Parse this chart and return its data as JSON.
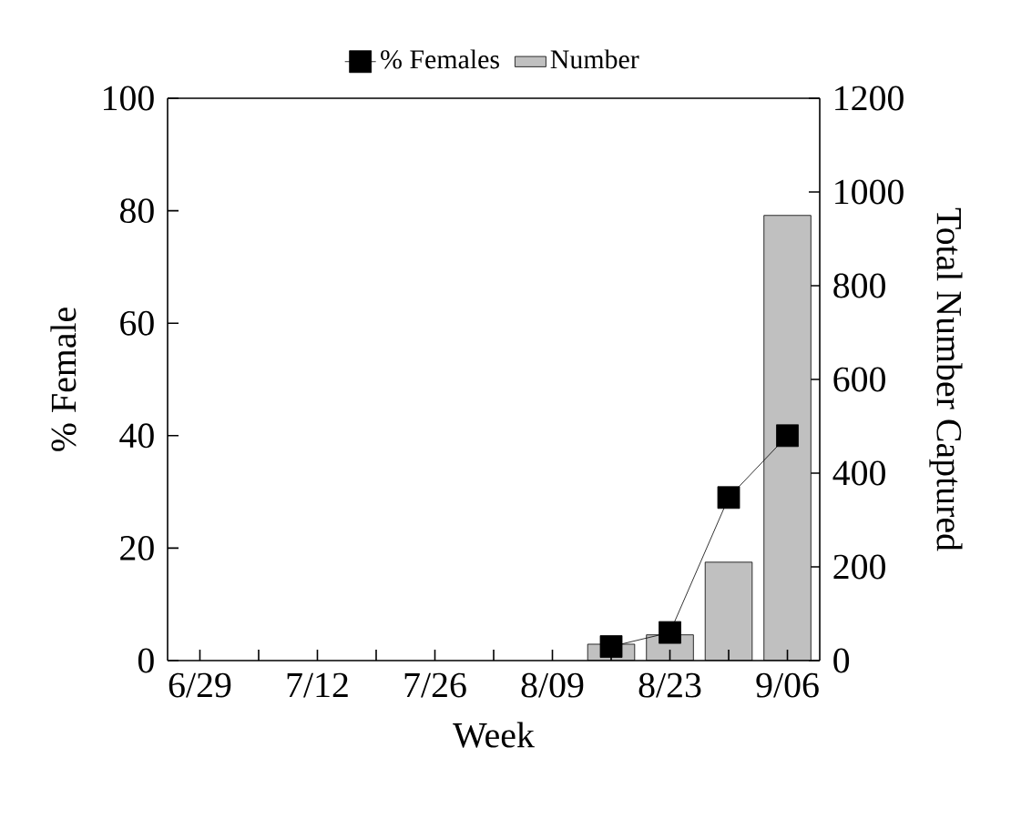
{
  "chart_data": {
    "type": "bar",
    "xlabel": "Week",
    "ylabel": "% Female",
    "y2label": "Total Number Captured",
    "categories": [
      "6/29",
      null,
      "7/12",
      null,
      "7/26",
      null,
      "8/09",
      null,
      "8/23",
      null,
      "9/06"
    ],
    "series": [
      {
        "name": "% Females",
        "type": "line",
        "color": "#000000",
        "values": [
          null,
          null,
          null,
          null,
          null,
          null,
          null,
          2.5,
          5,
          29,
          40
        ]
      },
      {
        "name": "Number",
        "axis": "y2",
        "color": "#c0c0c0",
        "values": [
          null,
          null,
          null,
          null,
          null,
          null,
          null,
          35,
          55,
          210,
          950
        ]
      }
    ],
    "ylim": [
      0,
      100
    ],
    "yticks": [
      0,
      20,
      40,
      60,
      80,
      100
    ],
    "y2lim": [
      0,
      1200
    ],
    "y2ticks": [
      0,
      200,
      400,
      600,
      800,
      1000,
      1200
    ],
    "marker": "square",
    "line_style": "solid",
    "legend": "top",
    "grid": false
  }
}
